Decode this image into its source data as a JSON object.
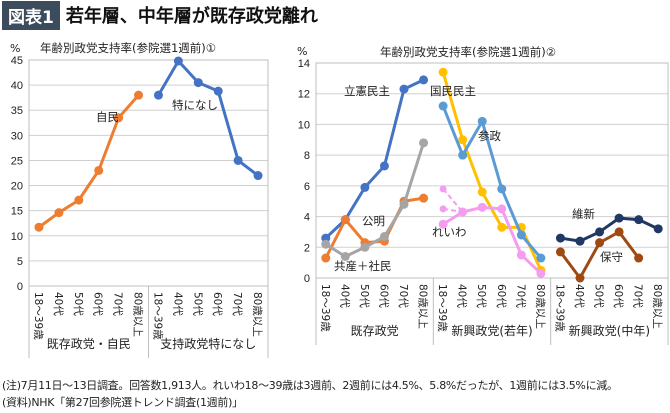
{
  "header": {
    "badge": "図表1",
    "headline": "若年層、中年層が既存政党離れ"
  },
  "notes": [
    "(注)7月11日～13日調査。回答数1,913人。れいわ18～39歳は3週前、2週前には4.5%、5.8%だったが、1週前には3.5%に減。",
    "(資料)NHK「第27回参院選トレンド調査(1週前)」"
  ],
  "chart_data": [
    {
      "type": "line",
      "title": "年齢別政党支持率(参院選1週前)①",
      "ylabel": "%",
      "ylim": [
        0,
        45
      ],
      "yticks": [
        0,
        5,
        10,
        15,
        20,
        25,
        30,
        35,
        40,
        45
      ],
      "grid": true,
      "categories": [
        "18～39歳",
        "40代",
        "50代",
        "60代",
        "70代",
        "80歳以上",
        "18～39歳",
        "40代",
        "50代",
        "60代",
        "70代",
        "80歳以上"
      ],
      "groups": [
        {
          "label": "既存政党・自民",
          "count": 6
        },
        {
          "label": "支持政党特になし",
          "count": 6
        }
      ],
      "series": [
        {
          "name": "自民",
          "color": "#ED7D31",
          "values": [
            11.7,
            14.6,
            17.1,
            23.0,
            33.5,
            38.0,
            null,
            null,
            null,
            null,
            null,
            null
          ]
        },
        {
          "name": "特になし",
          "color": "#4472C4",
          "values": [
            null,
            null,
            null,
            null,
            null,
            null,
            38.0,
            44.8,
            40.5,
            38.8,
            25.0,
            22.0
          ]
        }
      ]
    },
    {
      "type": "line",
      "title": "年齢別政党支持率(参院選1週前)②",
      "ylabel": "%",
      "ylim": [
        0,
        14
      ],
      "yticks": [
        0,
        2,
        4,
        6,
        8,
        10,
        12,
        14
      ],
      "grid": true,
      "categories": [
        "18～39歳",
        "40代",
        "50代",
        "60代",
        "70代",
        "80歳以上",
        "18～39歳",
        "40代",
        "50代",
        "60代",
        "70代",
        "80歳以上",
        "18～39歳",
        "40代",
        "50代",
        "60代",
        "70代",
        "80歳以上"
      ],
      "groups": [
        {
          "label": "既存政党",
          "count": 6
        },
        {
          "label": "新興政党(若年)",
          "count": 6
        },
        {
          "label": "新興政党(中年)",
          "count": 6
        }
      ],
      "series": [
        {
          "name": "立憲民主",
          "color": "#4472C4",
          "values": [
            2.6,
            3.8,
            5.9,
            7.3,
            12.3,
            12.9,
            null,
            null,
            null,
            null,
            null,
            null,
            null,
            null,
            null,
            null,
            null,
            null
          ]
        },
        {
          "name": "公明",
          "color": "#ED7D31",
          "values": [
            1.3,
            3.8,
            2.3,
            2.4,
            5.0,
            5.2,
            null,
            null,
            null,
            null,
            null,
            null,
            null,
            null,
            null,
            null,
            null,
            null
          ]
        },
        {
          "name": "共産＋社民",
          "color": "#A5A5A5",
          "values": [
            2.2,
            1.4,
            2.0,
            2.7,
            4.8,
            8.8,
            null,
            null,
            null,
            null,
            null,
            null,
            null,
            null,
            null,
            null,
            null,
            null
          ]
        },
        {
          "name": "国民民主",
          "color": "#FFC000",
          "values": [
            null,
            null,
            null,
            null,
            null,
            null,
            13.4,
            9.0,
            5.6,
            3.3,
            3.3,
            0.5,
            null,
            null,
            null,
            null,
            null,
            null
          ]
        },
        {
          "name": "参政",
          "color": "#5B9BD5",
          "values": [
            null,
            null,
            null,
            null,
            null,
            null,
            11.2,
            8.0,
            10.2,
            5.8,
            2.8,
            1.3,
            null,
            null,
            null,
            null,
            null,
            null
          ]
        },
        {
          "name": "れいわ",
          "color": "#F59CF0",
          "values": [
            null,
            null,
            null,
            null,
            null,
            null,
            3.5,
            4.3,
            4.6,
            4.5,
            1.5,
            0.3,
            null,
            null,
            null,
            null,
            null,
            null
          ]
        },
        {
          "color": "#F59CF0",
          "dashed": true,
          "values": [
            null,
            null,
            null,
            null,
            null,
            null,
            4.5,
            4.3,
            null,
            null,
            null,
            null,
            null,
            null,
            null,
            null,
            null,
            null
          ]
        },
        {
          "color": "#F59CF0",
          "dashed": true,
          "values": [
            null,
            null,
            null,
            null,
            null,
            null,
            5.8,
            4.3,
            null,
            null,
            null,
            null,
            null,
            null,
            null,
            null,
            null,
            null
          ]
        },
        {
          "name": "維新",
          "color": "#203864",
          "values": [
            null,
            null,
            null,
            null,
            null,
            null,
            null,
            null,
            null,
            null,
            null,
            null,
            2.6,
            2.4,
            3.0,
            3.9,
            3.8,
            3.2
          ]
        },
        {
          "name": "保守",
          "color": "#9E4A12",
          "values": [
            null,
            null,
            null,
            null,
            null,
            null,
            null,
            null,
            null,
            null,
            null,
            null,
            1.7,
            0.0,
            2.3,
            3.0,
            1.3,
            null
          ]
        }
      ]
    }
  ]
}
